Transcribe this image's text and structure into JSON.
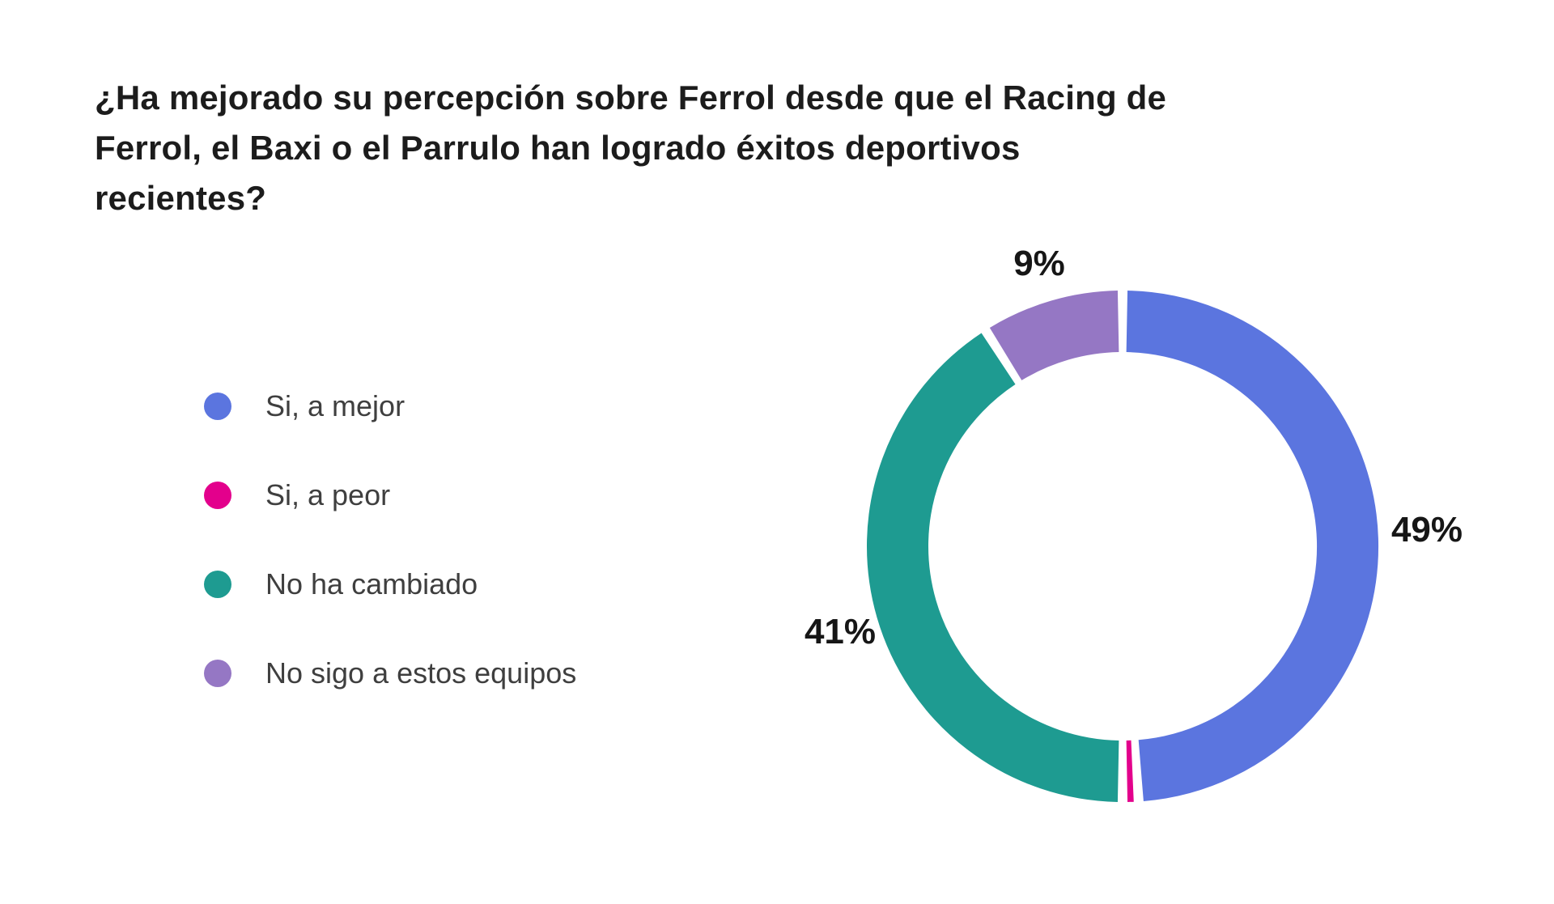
{
  "question": {
    "title": "¿Ha mejorado su percepción sobre Ferrol desde que el Racing de Ferrol, el Baxi o el Parrulo han logrado éxitos deportivos recientes?"
  },
  "legend": {
    "position": "left",
    "items": [
      {
        "label": "Si, a mejor",
        "color": "#5b75df"
      },
      {
        "label": "Si, a peor",
        "color": "#e3008c"
      },
      {
        "label": "No ha cambiado",
        "color": "#1e9b91"
      },
      {
        "label": "No sigo a estos equipos",
        "color": "#9577c4"
      }
    ]
  },
  "chart_data": {
    "type": "pie",
    "subtype": "donut",
    "title": "¿Ha mejorado su percepción sobre Ferrol desde que el Racing de Ferrol, el Baxi o el Parrulo han logrado éxitos deportivos recientes?",
    "categories": [
      "Si, a mejor",
      "Si, a peor",
      "No ha cambiado",
      "No sigo a estos equipos"
    ],
    "values": [
      49,
      1,
      41,
      9
    ],
    "unit": "%",
    "start_angle_deg": 0,
    "direction": "clockwise",
    "legend_position": "left",
    "slices": [
      {
        "name": "Si, a mejor",
        "value": 49,
        "label": "49%",
        "color": "#5b75df"
      },
      {
        "name": "Si, a peor",
        "value": 1,
        "label": "",
        "color": "#e3008c"
      },
      {
        "name": "No ha cambiado",
        "value": 41,
        "label": "41%",
        "color": "#1e9b91"
      },
      {
        "name": "No sigo a estos equipos",
        "value": 9,
        "label": "9%",
        "color": "#9577c4"
      }
    ]
  }
}
